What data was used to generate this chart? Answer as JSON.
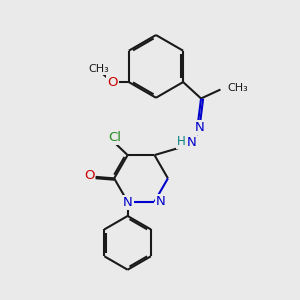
{
  "bg_color": "#eaeaea",
  "bond_color": "#1a1a1a",
  "bond_width": 1.5,
  "dbo": 0.06,
  "atom_colors": {
    "N": "#0000cc",
    "O": "#cc0000",
    "Cl": "#228B22",
    "H": "#008080",
    "C": "#1a1a1a"
  },
  "fs": 8.5
}
